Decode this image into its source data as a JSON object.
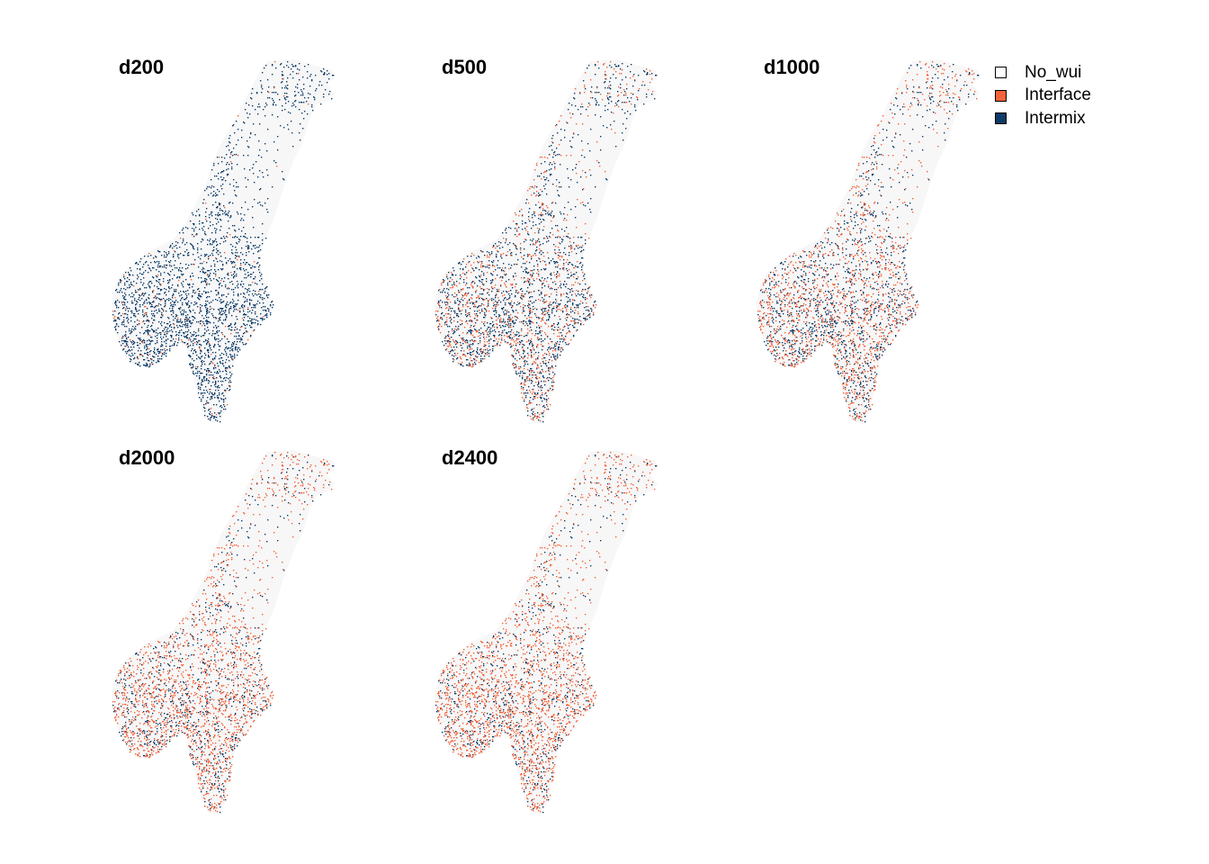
{
  "chart_data": {
    "type": "map",
    "panels": [
      {
        "title": "d200",
        "interface_share": 0.05
      },
      {
        "title": "d500",
        "interface_share": 0.35
      },
      {
        "title": "d1000",
        "interface_share": 0.5
      },
      {
        "title": "d2000",
        "interface_share": 0.65
      },
      {
        "title": "d2400",
        "interface_share": 0.7
      }
    ],
    "legend": {
      "placement": "top-right",
      "items": [
        {
          "label": "No_wui",
          "color": "#ffffff"
        },
        {
          "label": "Interface",
          "color": "#f4633a"
        },
        {
          "label": "Intermix",
          "color": "#0d3a66"
        }
      ]
    },
    "land_color": "#f7f7f7"
  }
}
